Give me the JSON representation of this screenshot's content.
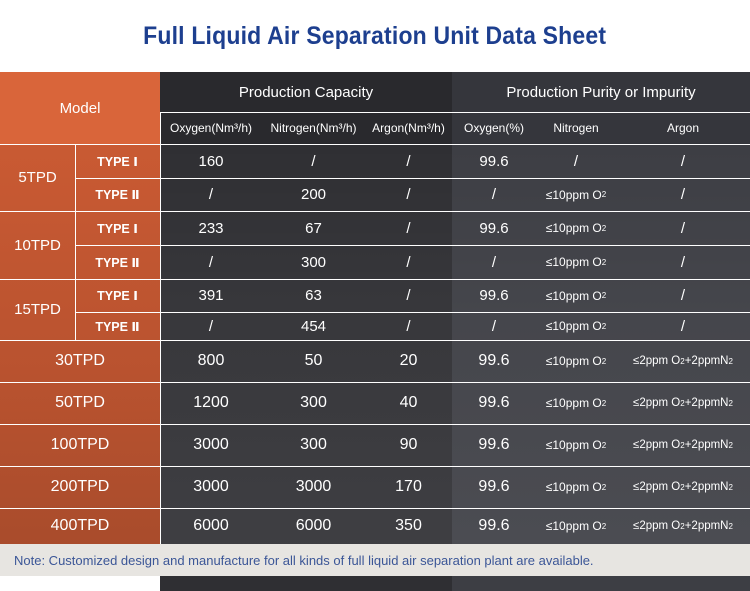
{
  "title": "Full Liquid Air Separation Unit  Data Sheet",
  "headers": {
    "model": "Model",
    "production_capacity": "Production Capacity",
    "production_purity": "Production Purity or Impurity",
    "oxygen_nm3h": "Oxygen(Nm³/h)",
    "nitrogen_nm3h": "Nitrogen(Nm³/h)",
    "argon_nm3h": "Argon(Nm³/h)",
    "oxygen_pct": "Oxygen(%)",
    "nitrogen": "Nitrogen",
    "argon": "Argon"
  },
  "rows": [
    {
      "model": "5TPD",
      "type": "TYPE Ⅰ",
      "o2": "160",
      "n2": "/",
      "ar": "/",
      "o2p": "99.6",
      "n2i": "/",
      "ari": "/"
    },
    {
      "model": "",
      "type": "TYPE Ⅱ",
      "o2": "/",
      "n2": "200",
      "ar": "/",
      "o2p": "/",
      "n2i": "≤10ppm O",
      "ari": "/"
    },
    {
      "model": "10TPD",
      "type": "TYPE Ⅰ",
      "o2": "233",
      "n2": "67",
      "ar": "/",
      "o2p": "99.6",
      "n2i": "≤10ppm O",
      "ari": "/"
    },
    {
      "model": "",
      "type": "TYPE Ⅱ",
      "o2": "/",
      "n2": "300",
      "ar": "/",
      "o2p": "/",
      "n2i": "≤10ppm O",
      "ari": "/"
    },
    {
      "model": "15TPD",
      "type": "TYPE Ⅰ",
      "o2": "391",
      "n2": "63",
      "ar": "/",
      "o2p": "99.6",
      "n2i": "≤10ppm O",
      "ari": "/"
    },
    {
      "model": "",
      "type": "TYPE Ⅱ",
      "o2": "/",
      "n2": "454",
      "ar": "/",
      "o2p": "/",
      "n2i": "≤10ppm O",
      "ari": "/"
    },
    {
      "model": "30TPD",
      "o2": "800",
      "n2": "50",
      "ar": "20",
      "o2p": "99.6",
      "n2i": "≤10ppm O",
      "ari_a": "≤2ppm O",
      "ari_b": "+2ppmN"
    },
    {
      "model": "50TPD",
      "o2": "1200",
      "n2": "300",
      "ar": "40",
      "o2p": "99.6",
      "n2i": "≤10ppm O",
      "ari_a": "≤2ppm O",
      "ari_b": "+2ppmN"
    },
    {
      "model": "100TPD",
      "o2": "3000",
      "n2": "300",
      "ar": "90",
      "o2p": "99.6",
      "n2i": "≤10ppm O",
      "ari_a": "≤2ppm O",
      "ari_b": "+2ppmN"
    },
    {
      "model": "200TPD",
      "o2": "3000",
      "n2": "3000",
      "ar": "170",
      "o2p": "99.6",
      "n2i": "≤10ppm O",
      "ari_a": "≤2ppm O",
      "ari_b": "+2ppmN"
    },
    {
      "model": "400TPD",
      "o2": "6000",
      "n2": "6000",
      "ar": "350",
      "o2p": "99.6",
      "n2i": "≤10ppm O",
      "ari_a": "≤2ppm O",
      "ari_b": "+2ppmN"
    }
  ],
  "subscript_2": "2",
  "note": "Note: Customized design and manufacture for all kinds of full liquid air separation plant are available.",
  "colors": {
    "title": "#1d3f8f",
    "model_column": "#d9653a",
    "capacity_panel": "#2f2f33",
    "purity_panel": "#3d3e44",
    "note_bar": "#e7e5e1",
    "note_text": "#3b5697"
  }
}
